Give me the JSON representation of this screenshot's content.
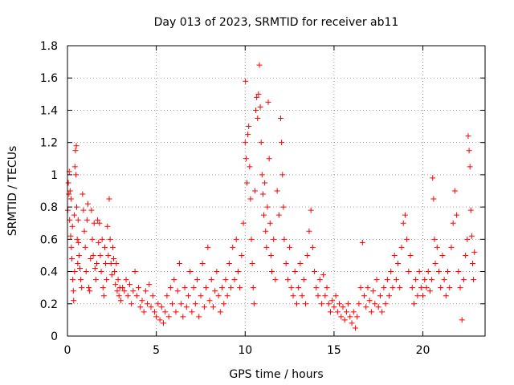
{
  "chart_data": {
    "type": "scatter",
    "title": "Day 013 of 2023, SRMTID for receiver ab11",
    "xlabel": "GPS time / hours",
    "ylabel": "SRMTID / TECUs",
    "xlim": [
      0,
      23.5
    ],
    "ylim": [
      0,
      1.8
    ],
    "xticks": [
      0,
      5,
      10,
      15,
      20
    ],
    "xtick_labels": [
      "0",
      "5",
      "10",
      "15",
      "20"
    ],
    "yticks": [
      0,
      0.2,
      0.4,
      0.6,
      0.8,
      1.0,
      1.2,
      1.4,
      1.6,
      1.8
    ],
    "ytick_labels": [
      "0",
      "0.2",
      "0.4",
      "0.6",
      "0.8",
      "1",
      "1.2",
      "1.4",
      "1.6",
      "1.8"
    ],
    "grid": true,
    "marker": "+",
    "marker_color": "#ff0000",
    "series": [
      {
        "name": "SRMTID",
        "points": [
          [
            0.02,
            0.78
          ],
          [
            0.05,
            0.95
          ],
          [
            0.08,
            0.88
          ],
          [
            0.1,
            1.02
          ],
          [
            0.12,
            0.72
          ],
          [
            0.15,
            0.9
          ],
          [
            0.18,
            0.62
          ],
          [
            0.2,
            0.85
          ],
          [
            0.22,
            0.55
          ],
          [
            0.25,
            0.48
          ],
          [
            0.28,
            0.68
          ],
          [
            0.3,
            0.35
          ],
          [
            0.33,
            0.28
          ],
          [
            0.35,
            0.22
          ],
          [
            0.38,
            0.75
          ],
          [
            0.4,
            0.4
          ],
          [
            0.42,
            1.05
          ],
          [
            0.45,
            1.15
          ],
          [
            0.48,
            1.0
          ],
          [
            0.5,
            1.18
          ],
          [
            0.52,
            0.8
          ],
          [
            0.55,
            0.6
          ],
          [
            0.58,
            0.45
          ],
          [
            0.6,
            0.72
          ],
          [
            0.62,
            0.58
          ],
          [
            0.65,
            0.5
          ],
          [
            0.7,
            0.42
          ],
          [
            0.75,
            0.35
          ],
          [
            0.8,
            0.3
          ],
          [
            0.85,
            0.88
          ],
          [
            0.9,
            0.78
          ],
          [
            0.95,
            0.65
          ],
          [
            1.0,
            0.55
          ],
          [
            1.05,
            0.4
          ],
          [
            1.1,
            0.72
          ],
          [
            1.15,
            0.82
          ],
          [
            1.2,
            0.3
          ],
          [
            1.25,
            0.28
          ],
          [
            1.3,
            0.48
          ],
          [
            1.35,
            0.78
          ],
          [
            1.4,
            0.6
          ],
          [
            1.45,
            0.5
          ],
          [
            1.5,
            0.7
          ],
          [
            1.55,
            0.42
          ],
          [
            1.6,
            0.35
          ],
          [
            1.65,
            0.45
          ],
          [
            1.7,
            0.72
          ],
          [
            1.75,
            0.58
          ],
          [
            1.8,
            0.7
          ],
          [
            1.85,
            0.5
          ],
          [
            1.9,
            0.4
          ],
          [
            1.95,
            0.6
          ],
          [
            2.0,
            0.3
          ],
          [
            2.05,
            0.25
          ],
          [
            2.1,
            0.55
          ],
          [
            2.15,
            0.45
          ],
          [
            2.2,
            0.35
          ],
          [
            2.25,
            0.68
          ],
          [
            2.3,
            0.5
          ],
          [
            2.35,
            0.85
          ],
          [
            2.4,
            0.6
          ],
          [
            2.45,
            0.45
          ],
          [
            2.5,
            0.38
          ],
          [
            2.55,
            0.55
          ],
          [
            2.6,
            0.48
          ],
          [
            2.65,
            0.4
          ],
          [
            2.7,
            0.32
          ],
          [
            2.75,
            0.45
          ],
          [
            2.8,
            0.28
          ],
          [
            2.85,
            0.35
          ],
          [
            2.9,
            0.25
          ],
          [
            2.95,
            0.3
          ],
          [
            3.0,
            0.22
          ],
          [
            3.1,
            0.3
          ],
          [
            3.2,
            0.28
          ],
          [
            3.3,
            0.35
          ],
          [
            3.4,
            0.25
          ],
          [
            3.5,
            0.32
          ],
          [
            3.6,
            0.2
          ],
          [
            3.7,
            0.28
          ],
          [
            3.8,
            0.4
          ],
          [
            3.9,
            0.25
          ],
          [
            4.0,
            0.3
          ],
          [
            4.1,
            0.18
          ],
          [
            4.2,
            0.22
          ],
          [
            4.3,
            0.15
          ],
          [
            4.4,
            0.28
          ],
          [
            4.5,
            0.2
          ],
          [
            4.6,
            0.32
          ],
          [
            4.7,
            0.18
          ],
          [
            4.8,
            0.25
          ],
          [
            4.9,
            0.15
          ],
          [
            5.0,
            0.12
          ],
          [
            5.1,
            0.2
          ],
          [
            5.2,
            0.1
          ],
          [
            5.3,
            0.18
          ],
          [
            5.4,
            0.08
          ],
          [
            5.5,
            0.15
          ],
          [
            5.6,
            0.25
          ],
          [
            5.7,
            0.12
          ],
          [
            5.8,
            0.3
          ],
          [
            5.9,
            0.2
          ],
          [
            6.0,
            0.35
          ],
          [
            6.1,
            0.15
          ],
          [
            6.2,
            0.28
          ],
          [
            6.3,
            0.45
          ],
          [
            6.4,
            0.2
          ],
          [
            6.5,
            0.12
          ],
          [
            6.6,
            0.3
          ],
          [
            6.7,
            0.18
          ],
          [
            6.8,
            0.25
          ],
          [
            6.9,
            0.4
          ],
          [
            7.0,
            0.15
          ],
          [
            7.1,
            0.3
          ],
          [
            7.2,
            0.2
          ],
          [
            7.3,
            0.35
          ],
          [
            7.4,
            0.12
          ],
          [
            7.5,
            0.25
          ],
          [
            7.6,
            0.45
          ],
          [
            7.7,
            0.18
          ],
          [
            7.8,
            0.3
          ],
          [
            7.9,
            0.55
          ],
          [
            8.0,
            0.22
          ],
          [
            8.1,
            0.35
          ],
          [
            8.2,
            0.18
          ],
          [
            8.3,
            0.28
          ],
          [
            8.4,
            0.4
          ],
          [
            8.5,
            0.25
          ],
          [
            8.6,
            0.15
          ],
          [
            8.7,
            0.3
          ],
          [
            8.8,
            0.2
          ],
          [
            8.9,
            0.35
          ],
          [
            9.0,
            0.25
          ],
          [
            9.1,
            0.45
          ],
          [
            9.2,
            0.3
          ],
          [
            9.3,
            0.55
          ],
          [
            9.4,
            0.35
          ],
          [
            9.5,
            0.6
          ],
          [
            9.6,
            0.4
          ],
          [
            9.7,
            0.3
          ],
          [
            9.8,
            0.5
          ],
          [
            9.9,
            0.7
          ],
          [
            10.0,
            1.2
          ],
          [
            10.02,
            1.58
          ],
          [
            10.05,
            1.1
          ],
          [
            10.1,
            0.95
          ],
          [
            10.15,
            1.25
          ],
          [
            10.2,
            1.3
          ],
          [
            10.25,
            1.05
          ],
          [
            10.3,
            0.85
          ],
          [
            10.35,
            0.6
          ],
          [
            10.4,
            0.45
          ],
          [
            10.45,
            0.3
          ],
          [
            10.5,
            0.2
          ],
          [
            10.55,
            0.9
          ],
          [
            10.6,
            1.4
          ],
          [
            10.65,
            1.48
          ],
          [
            10.7,
            1.35
          ],
          [
            10.75,
            1.5
          ],
          [
            10.8,
            1.68
          ],
          [
            10.85,
            1.42
          ],
          [
            10.9,
            1.2
          ],
          [
            10.95,
            1.0
          ],
          [
            11.0,
            0.88
          ],
          [
            11.05,
            0.75
          ],
          [
            11.1,
            0.95
          ],
          [
            11.15,
            0.65
          ],
          [
            11.2,
            0.55
          ],
          [
            11.25,
            0.8
          ],
          [
            11.3,
            1.45
          ],
          [
            11.35,
            1.1
          ],
          [
            11.4,
            0.7
          ],
          [
            11.45,
            0.5
          ],
          [
            11.5,
            0.4
          ],
          [
            11.6,
            0.6
          ],
          [
            11.7,
            0.35
          ],
          [
            11.8,
            0.9
          ],
          [
            11.9,
            0.75
          ],
          [
            12.0,
            1.35
          ],
          [
            12.05,
            1.2
          ],
          [
            12.1,
            1.0
          ],
          [
            12.15,
            0.8
          ],
          [
            12.2,
            0.6
          ],
          [
            12.3,
            0.45
          ],
          [
            12.4,
            0.35
          ],
          [
            12.5,
            0.55
          ],
          [
            12.6,
            0.3
          ],
          [
            12.7,
            0.25
          ],
          [
            12.8,
            0.4
          ],
          [
            12.9,
            0.2
          ],
          [
            13.0,
            0.3
          ],
          [
            13.1,
            0.45
          ],
          [
            13.2,
            0.25
          ],
          [
            13.3,
            0.35
          ],
          [
            13.4,
            0.2
          ],
          [
            13.5,
            0.5
          ],
          [
            13.6,
            0.65
          ],
          [
            13.7,
            0.78
          ],
          [
            13.8,
            0.55
          ],
          [
            13.9,
            0.4
          ],
          [
            14.0,
            0.3
          ],
          [
            14.1,
            0.25
          ],
          [
            14.2,
            0.35
          ],
          [
            14.3,
            0.2
          ],
          [
            14.4,
            0.38
          ],
          [
            14.5,
            0.25
          ],
          [
            14.6,
            0.3
          ],
          [
            14.7,
            0.2
          ],
          [
            14.8,
            0.15
          ],
          [
            14.9,
            0.22
          ],
          [
            15.0,
            0.18
          ],
          [
            15.1,
            0.25
          ],
          [
            15.2,
            0.15
          ],
          [
            15.3,
            0.2
          ],
          [
            15.4,
            0.12
          ],
          [
            15.5,
            0.18
          ],
          [
            15.6,
            0.1
          ],
          [
            15.7,
            0.15
          ],
          [
            15.8,
            0.2
          ],
          [
            15.9,
            0.12
          ],
          [
            16.0,
            0.08
          ],
          [
            16.1,
            0.15
          ],
          [
            16.2,
            0.05
          ],
          [
            16.3,
            0.12
          ],
          [
            16.4,
            0.2
          ],
          [
            16.5,
            0.3
          ],
          [
            16.6,
            0.58
          ],
          [
            16.7,
            0.25
          ],
          [
            16.8,
            0.18
          ],
          [
            16.9,
            0.3
          ],
          [
            17.0,
            0.22
          ],
          [
            17.1,
            0.15
          ],
          [
            17.2,
            0.28
          ],
          [
            17.3,
            0.2
          ],
          [
            17.4,
            0.35
          ],
          [
            17.5,
            0.18
          ],
          [
            17.6,
            0.25
          ],
          [
            17.7,
            0.15
          ],
          [
            17.8,
            0.3
          ],
          [
            17.9,
            0.2
          ],
          [
            18.0,
            0.35
          ],
          [
            18.1,
            0.25
          ],
          [
            18.2,
            0.4
          ],
          [
            18.3,
            0.3
          ],
          [
            18.4,
            0.5
          ],
          [
            18.5,
            0.35
          ],
          [
            18.6,
            0.45
          ],
          [
            18.7,
            0.3
          ],
          [
            18.8,
            0.55
          ],
          [
            18.9,
            0.7
          ],
          [
            19.0,
            0.75
          ],
          [
            19.1,
            0.6
          ],
          [
            19.2,
            0.4
          ],
          [
            19.3,
            0.5
          ],
          [
            19.4,
            0.3
          ],
          [
            19.5,
            0.2
          ],
          [
            19.6,
            0.35
          ],
          [
            19.7,
            0.25
          ],
          [
            19.8,
            0.4
          ],
          [
            19.9,
            0.3
          ],
          [
            20.0,
            0.25
          ],
          [
            20.1,
            0.35
          ],
          [
            20.2,
            0.3
          ],
          [
            20.3,
            0.4
          ],
          [
            20.4,
            0.28
          ],
          [
            20.5,
            0.35
          ],
          [
            20.55,
            0.98
          ],
          [
            20.6,
            0.85
          ],
          [
            20.65,
            0.6
          ],
          [
            20.7,
            0.45
          ],
          [
            20.8,
            0.55
          ],
          [
            20.9,
            0.4
          ],
          [
            21.0,
            0.3
          ],
          [
            21.1,
            0.5
          ],
          [
            21.2,
            0.35
          ],
          [
            21.3,
            0.25
          ],
          [
            21.4,
            0.4
          ],
          [
            21.5,
            0.3
          ],
          [
            21.6,
            0.55
          ],
          [
            21.7,
            0.7
          ],
          [
            21.8,
            0.9
          ],
          [
            21.9,
            0.75
          ],
          [
            22.0,
            0.4
          ],
          [
            22.1,
            0.3
          ],
          [
            22.2,
            0.1
          ],
          [
            22.3,
            0.35
          ],
          [
            22.4,
            0.5
          ],
          [
            22.5,
            0.6
          ],
          [
            22.55,
            1.24
          ],
          [
            22.6,
            1.15
          ],
          [
            22.65,
            1.05
          ],
          [
            22.7,
            0.78
          ],
          [
            22.75,
            0.62
          ],
          [
            22.8,
            0.45
          ],
          [
            22.85,
            0.35
          ],
          [
            22.9,
            0.52
          ]
        ]
      }
    ]
  }
}
